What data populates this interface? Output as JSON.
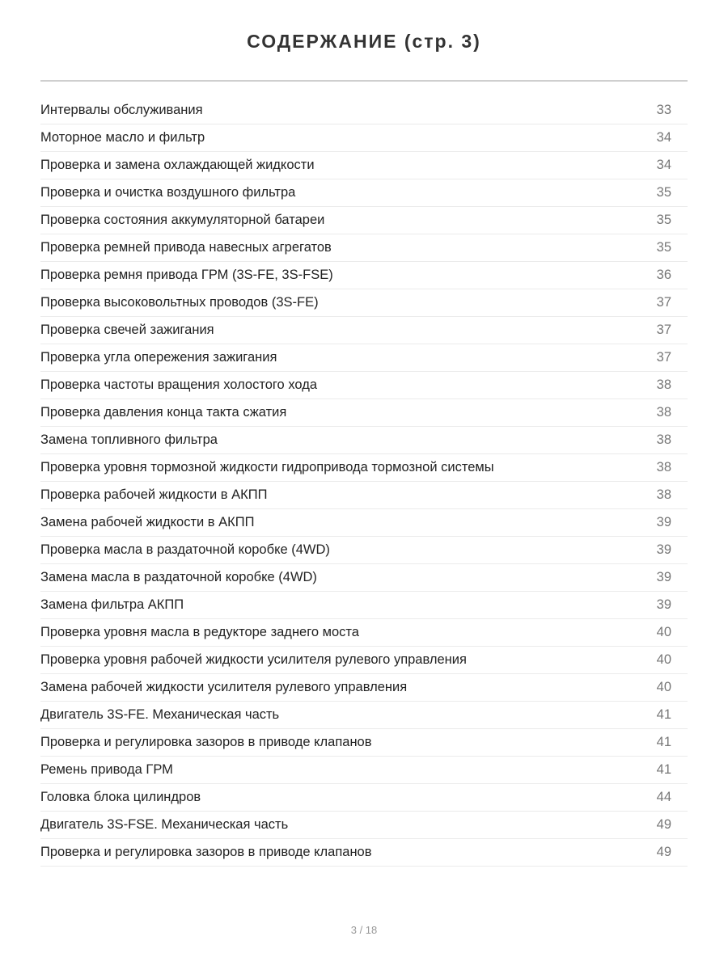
{
  "title": "СОДЕРЖАНИЕ (стр. 3)",
  "entries": [
    {
      "label": "Интервалы обслуживания",
      "page": "33"
    },
    {
      "label": "Моторное масло и фильтр",
      "page": "34"
    },
    {
      "label": "Проверка и замена охлаждающей жидкости",
      "page": "34"
    },
    {
      "label": "Проверка и очистка воздушного фильтра",
      "page": "35"
    },
    {
      "label": "Проверка состояния аккумуляторной батареи",
      "page": "35"
    },
    {
      "label": "Проверка ремней привода навесных агрегатов",
      "page": "35"
    },
    {
      "label": "Проверка ремня привода ГРМ (3S-FE, 3S-FSE)",
      "page": "36"
    },
    {
      "label": "Проверка высоковольтных проводов (3S-FE)",
      "page": "37"
    },
    {
      "label": "Проверка свечей зажигания",
      "page": "37"
    },
    {
      "label": "Проверка угла опережения зажигания",
      "page": "37"
    },
    {
      "label": "Проверка частоты вращения холостого хода",
      "page": "38"
    },
    {
      "label": "Проверка давления конца такта сжатия",
      "page": "38"
    },
    {
      "label": "Замена топливного фильтра",
      "page": "38"
    },
    {
      "label": "Проверка уровня тормозной жидкости гидропривода тормозной системы",
      "page": "38"
    },
    {
      "label": "Проверка рабочей жидкости в АКПП",
      "page": "38"
    },
    {
      "label": "Замена рабочей жидкости в АКПП",
      "page": "39"
    },
    {
      "label": "Проверка масла в раздаточной коробке (4WD)",
      "page": "39"
    },
    {
      "label": "Замена масла в раздаточной коробке (4WD)",
      "page": "39"
    },
    {
      "label": "Замена фильтра АКПП",
      "page": "39"
    },
    {
      "label": "Проверка уровня масла в редукторе заднего моста",
      "page": "40"
    },
    {
      "label": "Проверка уровня рабочей жидкости усилителя рулевого управления",
      "page": "40"
    },
    {
      "label": "Замена рабочей жидкости усилителя рулевого управления",
      "page": "40"
    },
    {
      "label": "Двигатель 3S-FE. Механическая часть",
      "page": "41"
    },
    {
      "label": "Проверка и регулировка зазоров в приводе клапанов",
      "page": "41"
    },
    {
      "label": "Ремень привода ГРМ",
      "page": "41"
    },
    {
      "label": "Головка блока цилиндров",
      "page": "44"
    },
    {
      "label": "Двигатель 3S-FSE. Механическая часть",
      "page": "49"
    },
    {
      "label": "Проверка и регулировка зазоров в приводе клапанов",
      "page": "49"
    }
  ],
  "footer": {
    "page_indicator": "3 / 18"
  }
}
